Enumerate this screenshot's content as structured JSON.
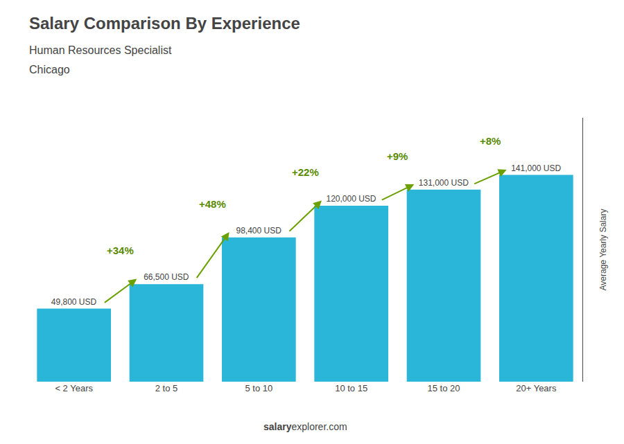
{
  "chart_data": {
    "type": "bar",
    "title": "Salary Comparison By Experience",
    "subtitle": [
      "Human Resources Specialist",
      "Chicago"
    ],
    "ylabel": "Average Yearly Salary",
    "categories": [
      "< 2 Years",
      "2 to 5",
      "5 to 10",
      "10 to 15",
      "15 to 20",
      "20+ Years"
    ],
    "values": [
      49800,
      66500,
      98400,
      120000,
      131000,
      141000
    ],
    "value_labels": [
      "49,800 USD",
      "66,500 USD",
      "98,400 USD",
      "120,000 USD",
      "131,000 USD",
      "141,000 USD"
    ],
    "data_labels": true,
    "color": "#29b6d8",
    "annotations": [
      "+34%",
      "+48%",
      "+22%",
      "+9%",
      "+8%"
    ],
    "footer": [
      "salary",
      "explorer.com"
    ],
    "ylim": [
      0,
      180000
    ],
    "tick_labels": "x",
    "grid": false
  }
}
